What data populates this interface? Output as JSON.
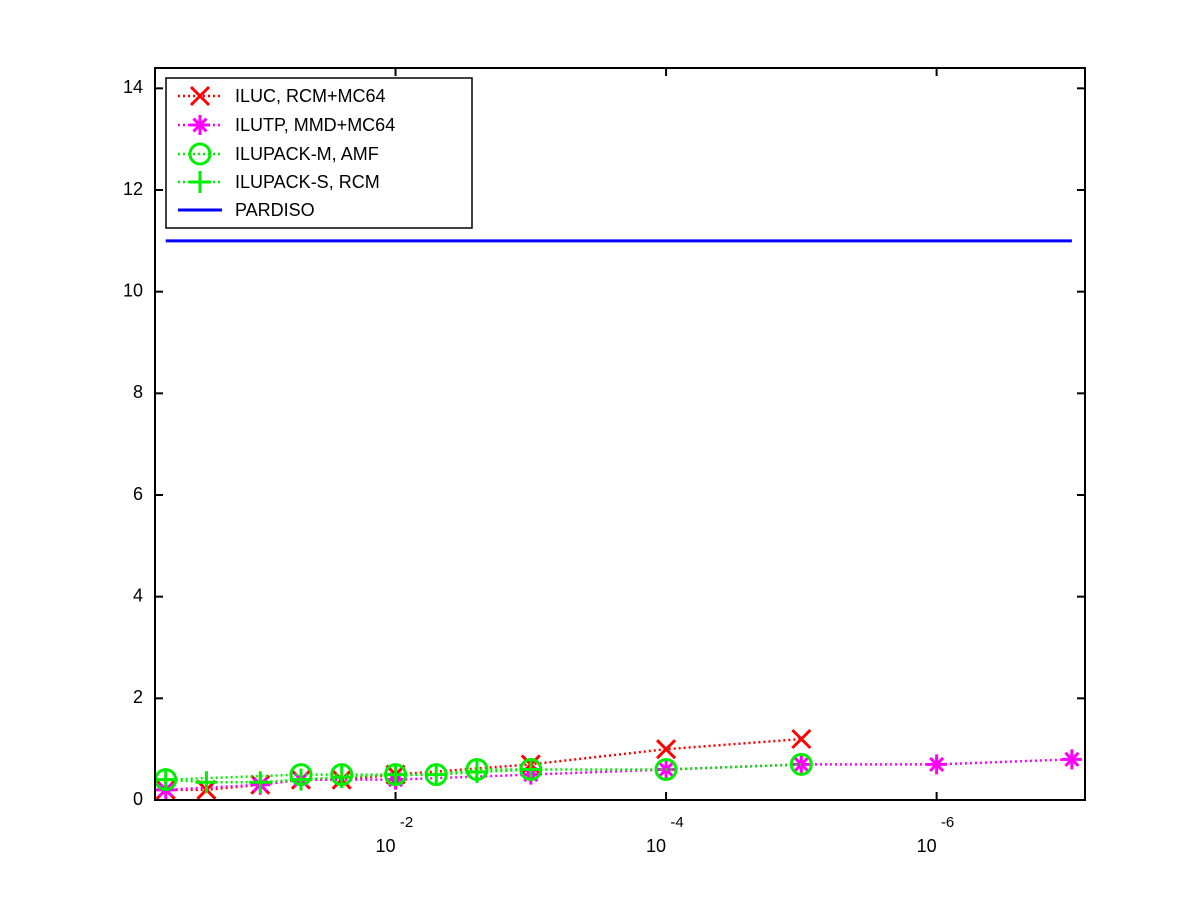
{
  "chart_data": {
    "type": "line",
    "xscale": "log",
    "xlim": [
      0.6,
      8e-08
    ],
    "ylim": [
      0,
      14.4
    ],
    "yticks": [
      0,
      2,
      4,
      6,
      8,
      10,
      12,
      14
    ],
    "xticks": [
      {
        "value": 0.01,
        "label": "10",
        "exponent": "-2"
      },
      {
        "value": 0.0001,
        "label": "10",
        "exponent": "-4"
      },
      {
        "value": 1e-06,
        "label": "10",
        "exponent": "-6"
      }
    ],
    "legend": "upper left",
    "series": [
      {
        "name": "ILUC, RCM+MC64",
        "color": "#ff0000",
        "marker": "x",
        "linestyle": "dotted",
        "x": [
          0.5,
          0.25,
          0.1,
          0.05,
          0.025,
          0.01,
          0.001,
          0.0001,
          1e-05
        ],
        "values": [
          0.2,
          0.2,
          0.3,
          0.4,
          0.4,
          0.5,
          0.7,
          1.0,
          1.2
        ]
      },
      {
        "name": "ILUTP, MMD+MC64",
        "color": "#ff00ff",
        "marker": "star",
        "linestyle": "dotted",
        "x": [
          0.5,
          0.1,
          0.05,
          0.01,
          0.001,
          0.0001,
          1e-05,
          1e-06,
          1e-07
        ],
        "values": [
          0.2,
          0.3,
          0.4,
          0.4,
          0.5,
          0.6,
          0.7,
          0.7,
          0.8
        ]
      },
      {
        "name": "ILUPACK-M, AMF",
        "color": "#00ee00",
        "marker": "circle",
        "linestyle": "dotted",
        "x": [
          0.5,
          0.05,
          0.025,
          0.01,
          0.005,
          0.0025,
          0.001,
          0.0001,
          1e-05
        ],
        "values": [
          0.4,
          0.5,
          0.5,
          0.5,
          0.5,
          0.6,
          0.6,
          0.6,
          0.7
        ]
      },
      {
        "name": "ILUPACK-S, RCM",
        "color": "#00ee00",
        "marker": "plus",
        "linestyle": "dotted",
        "x": [
          0.5,
          0.25,
          0.1,
          0.05,
          0.025,
          0.01,
          0.005,
          0.0025,
          0.001
        ],
        "values": [
          0.4,
          0.35,
          0.35,
          0.4,
          0.45,
          0.5,
          0.5,
          0.55,
          0.6
        ]
      },
      {
        "name": "PARDISO",
        "color": "#0000ff",
        "marker": "none",
        "linestyle": "solid",
        "x": [
          0.5,
          1e-07
        ],
        "values": [
          11,
          11
        ]
      }
    ]
  }
}
